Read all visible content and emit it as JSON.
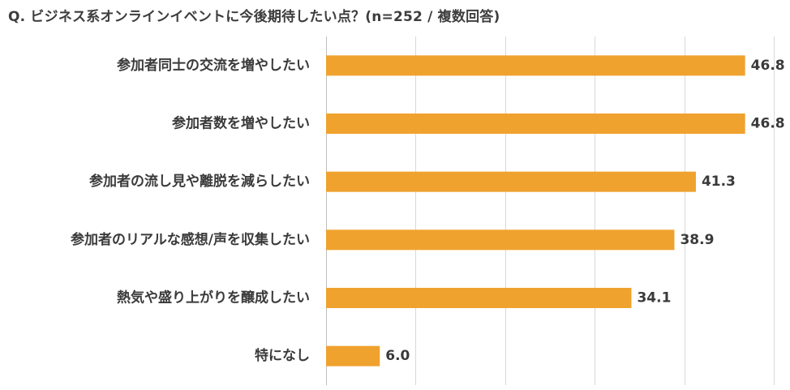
{
  "chart_data": {
    "type": "bar",
    "orientation": "horizontal",
    "title": "Q. ビジネス系オンラインイベントに今後期待したい点？(n=252 / 複数回答)",
    "categories": [
      "参加者同士の交流を増やしたい",
      "参加者数を増やしたい",
      "参加者の流し見や離脱を減らしたい",
      "参加者のリアルな感想/声を収集したい",
      "熱気や盛り上がりを醸成したい",
      "特になし"
    ],
    "values": [
      46.8,
      46.8,
      41.3,
      38.9,
      34.1,
      6.0
    ],
    "value_labels": [
      "46.8",
      "46.8",
      "41.3",
      "38.9",
      "34.1",
      "6.0"
    ],
    "xlim": [
      0,
      50
    ],
    "grid": true,
    "bar_color": "#F0A22E"
  }
}
